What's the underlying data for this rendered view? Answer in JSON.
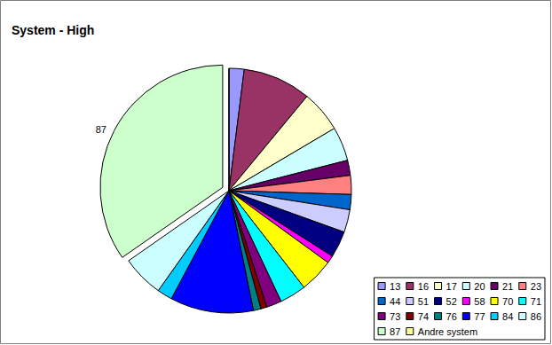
{
  "chart_data": {
    "type": "pie",
    "title": "System - High",
    "categories": [
      "13",
      "16",
      "17",
      "20",
      "21",
      "23",
      "44",
      "51",
      "52",
      "58",
      "70",
      "71",
      "73",
      "74",
      "76",
      "77",
      "84",
      "86",
      "87",
      "Andre system"
    ],
    "values": [
      2,
      9,
      5.5,
      4.5,
      2,
      2.5,
      2,
      3,
      3.5,
      1,
      4.5,
      3.5,
      2,
      0.8,
      1,
      11,
      2,
      5.5,
      34.7,
      0
    ],
    "colors": [
      "#9999ff",
      "#993366",
      "#ffffcc",
      "#ccffff",
      "#660066",
      "#ff8080",
      "#0066cc",
      "#ccccff",
      "#000080",
      "#ff00ff",
      "#ffff00",
      "#00ffff",
      "#800080",
      "#800000",
      "#008080",
      "#0000ff",
      "#00ccff",
      "#ccffff",
      "#ccffcc",
      "#ffff99"
    ],
    "annotations": [
      {
        "text": "87",
        "slice": "87"
      }
    ],
    "legend": "bottom-right",
    "data_labels": false
  }
}
